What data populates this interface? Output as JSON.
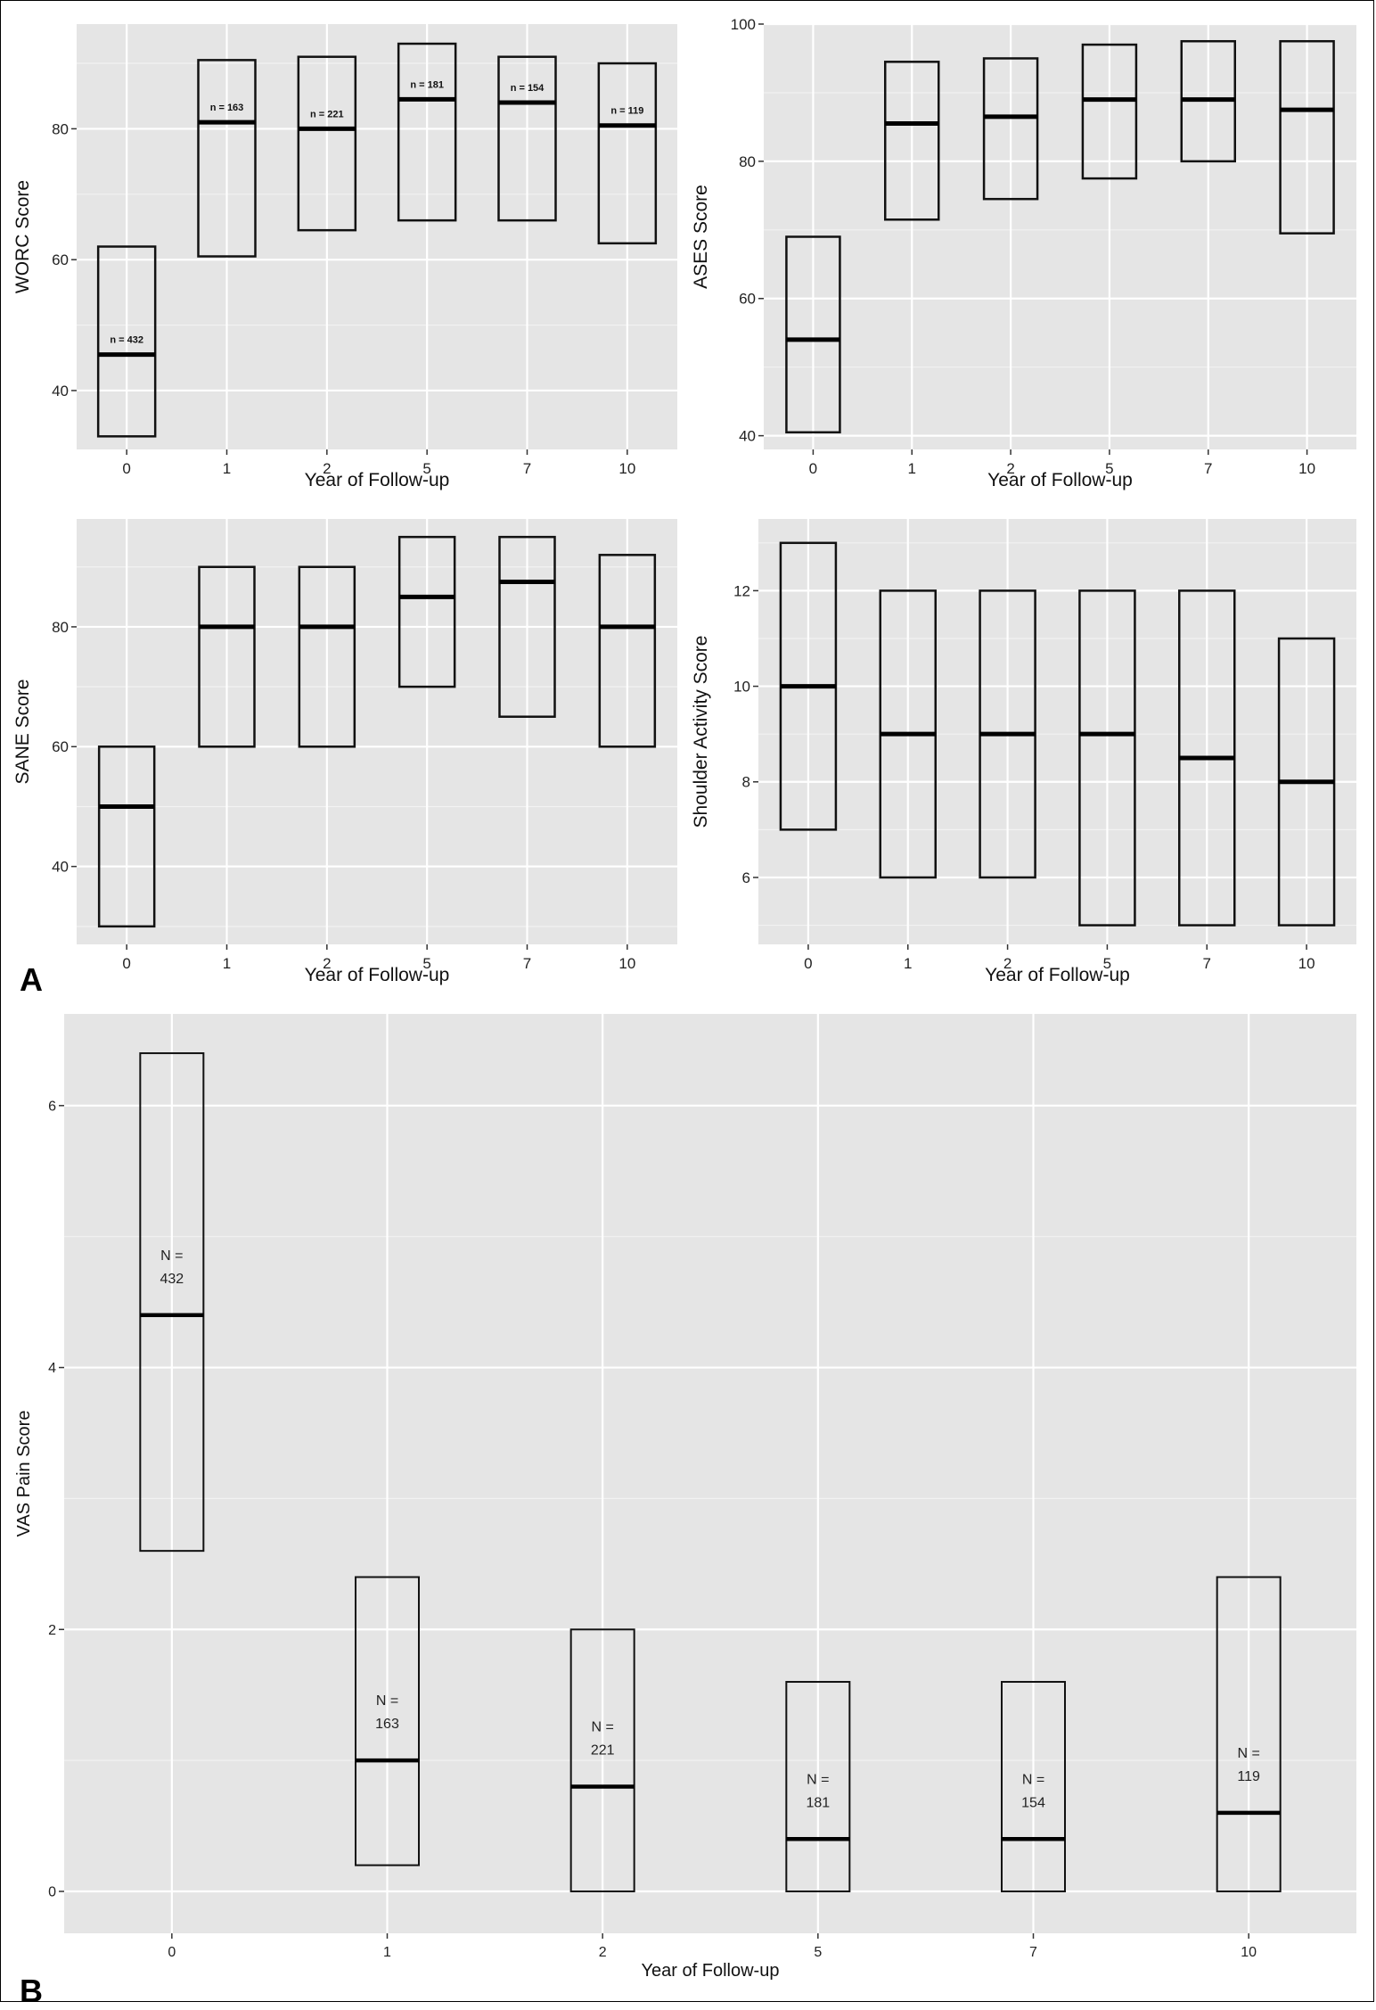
{
  "panels": [
    {
      "letter": "A"
    },
    {
      "letter": "B"
    }
  ],
  "chart_data": [
    {
      "type": "box",
      "xlabel": "Year of Follow-up",
      "ylabel": "WORC Score",
      "categories": [
        "0",
        "1",
        "2",
        "5",
        "7",
        "10"
      ],
      "ylim": [
        31,
        96
      ],
      "yticks": [
        40,
        60,
        80
      ],
      "boxes": [
        {
          "q1": 33,
          "median": 45.5,
          "q3": 62,
          "label": "n = 432"
        },
        {
          "q1": 60.5,
          "median": 81,
          "q3": 90.5,
          "label": "n = 163"
        },
        {
          "q1": 64.5,
          "median": 80,
          "q3": 91,
          "label": "n = 221"
        },
        {
          "q1": 66,
          "median": 84.5,
          "q3": 93,
          "label": "n = 181"
        },
        {
          "q1": 66,
          "median": 84,
          "q3": 91,
          "label": "n = 154"
        },
        {
          "q1": 62.5,
          "median": 80.5,
          "q3": 90,
          "label": "n = 119"
        }
      ],
      "grid": true
    },
    {
      "type": "box",
      "xlabel": "Year of Follow-up",
      "ylabel": "ASES Score",
      "categories": [
        "0",
        "1",
        "2",
        "5",
        "7",
        "10"
      ],
      "ylim": [
        38,
        100
      ],
      "yticks": [
        40,
        60,
        80,
        100
      ],
      "boxes": [
        {
          "q1": 40.5,
          "median": 54,
          "q3": 69
        },
        {
          "q1": 71.5,
          "median": 85.5,
          "q3": 94.5
        },
        {
          "q1": 74.5,
          "median": 86.5,
          "q3": 95
        },
        {
          "q1": 77.5,
          "median": 89,
          "q3": 97
        },
        {
          "q1": 80,
          "median": 89,
          "q3": 97.5
        },
        {
          "q1": 69.5,
          "median": 87.5,
          "q3": 97.5
        }
      ],
      "grid": true
    },
    {
      "type": "box",
      "xlabel": "Year of Follow-up",
      "ylabel": "SANE Score",
      "categories": [
        "0",
        "1",
        "2",
        "5",
        "7",
        "10"
      ],
      "ylim": [
        27,
        98
      ],
      "yticks": [
        40,
        60,
        80
      ],
      "boxes": [
        {
          "q1": 30,
          "median": 50,
          "q3": 60
        },
        {
          "q1": 60,
          "median": 80,
          "q3": 90
        },
        {
          "q1": 60,
          "median": 80,
          "q3": 90
        },
        {
          "q1": 70,
          "median": 85,
          "q3": 95
        },
        {
          "q1": 65,
          "median": 87.5,
          "q3": 95
        },
        {
          "q1": 60,
          "median": 80,
          "q3": 92
        }
      ],
      "grid": true
    },
    {
      "type": "box",
      "xlabel": "Year of Follow-up",
      "ylabel": "Shoulder Activity Score",
      "categories": [
        "0",
        "1",
        "2",
        "5",
        "7",
        "10"
      ],
      "ylim": [
        4.6,
        13.5
      ],
      "yticks": [
        6,
        8,
        10,
        12
      ],
      "boxes": [
        {
          "q1": 7,
          "median": 10,
          "q3": 13
        },
        {
          "q1": 6,
          "median": 9,
          "q3": 12
        },
        {
          "q1": 6,
          "median": 9,
          "q3": 12
        },
        {
          "q1": 5,
          "median": 9,
          "q3": 12
        },
        {
          "q1": 5,
          "median": 8.5,
          "q3": 12
        },
        {
          "q1": 5,
          "median": 8,
          "q3": 11
        }
      ],
      "grid": true
    },
    {
      "type": "box",
      "xlabel": "Year of Follow-up",
      "ylabel": "VAS Pain Score",
      "categories": [
        "0",
        "1",
        "2",
        "5",
        "7",
        "10"
      ],
      "ylim": [
        -0.32,
        6.7
      ],
      "yticks": [
        0,
        2,
        4,
        6
      ],
      "boxes": [
        {
          "q1": 2.6,
          "median": 4.4,
          "q3": 6.4,
          "label": [
            "N =",
            "432"
          ]
        },
        {
          "q1": 0.2,
          "median": 1.0,
          "q3": 2.4,
          "label": [
            "N =",
            "163"
          ]
        },
        {
          "q1": 0.0,
          "median": 0.8,
          "q3": 2.0,
          "label": [
            "N =",
            "221"
          ]
        },
        {
          "q1": 0.0,
          "median": 0.4,
          "q3": 1.6,
          "label": [
            "N =",
            "181"
          ]
        },
        {
          "q1": 0.0,
          "median": 0.4,
          "q3": 1.6,
          "label": [
            "N =",
            "154"
          ]
        },
        {
          "q1": 0.0,
          "median": 0.6,
          "q3": 2.4,
          "label": [
            "N =",
            "119"
          ]
        }
      ],
      "grid": true
    }
  ]
}
